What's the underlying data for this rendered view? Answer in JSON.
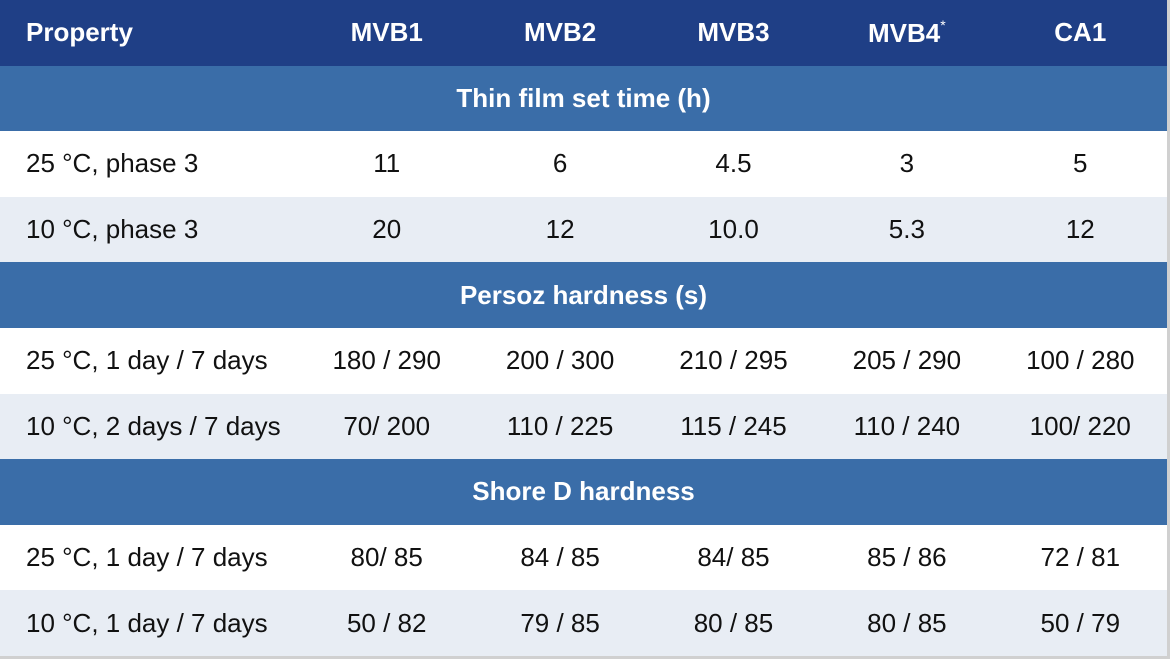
{
  "table": {
    "header": [
      "Property",
      "MVB1",
      "MVB2",
      "MVB3",
      {
        "text": "MVB4",
        "sup": "*"
      },
      "CA1"
    ],
    "sections": [
      {
        "title": "Thin film set time (h)",
        "rows": [
          [
            "25 °C, phase 3",
            "11",
            "6",
            "4.5",
            "3",
            "5"
          ],
          [
            "10 °C, phase 3",
            "20",
            "12",
            "10.0",
            "5.3",
            "12"
          ]
        ]
      },
      {
        "title": "Persoz hardness (s)",
        "rows": [
          [
            "25 °C, 1 day / 7 days",
            "180 / 290",
            "200 / 300",
            "210 / 295",
            "205 / 290",
            "100 / 280"
          ],
          [
            "10 °C, 2 days / 7 days",
            "70/ 200",
            "110 / 225",
            "115 / 245",
            "110 / 240",
            "100/ 220"
          ]
        ]
      },
      {
        "title": "Shore D hardness",
        "rows": [
          [
            "25 °C, 1 day / 7 days",
            "80/ 85",
            "84 / 85",
            "84/ 85",
            "85 / 86",
            "72 / 81"
          ],
          [
            "10 °C, 1 day / 7 days",
            "50 / 82",
            "79 / 85",
            "80 / 85",
            "80 / 85",
            "50 / 79"
          ]
        ]
      }
    ]
  }
}
